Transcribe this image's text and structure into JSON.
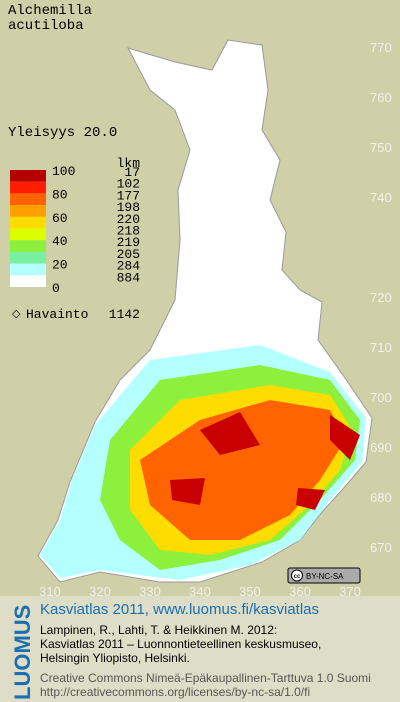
{
  "title": [
    "Alchemilla",
    "acutiloba"
  ],
  "frequency_text": "Yleisyys  20.0",
  "legend": {
    "scale_labels": [
      100,
      80,
      60,
      40,
      20,
      0
    ],
    "count_header": "lkm",
    "classes": [
      {
        "color": "#b40000",
        "count": 17
      },
      {
        "color": "#ff1e00",
        "count": 102
      },
      {
        "color": "#ff6400",
        "count": 177
      },
      {
        "color": "#ffa000",
        "count": 198
      },
      {
        "color": "#ffdc00",
        "count": 220
      },
      {
        "color": "#dcff00",
        "count": 218
      },
      {
        "color": "#8cf03c",
        "count": 219
      },
      {
        "color": "#78f0a0",
        "count": 205
      },
      {
        "color": "#b4ffff",
        "count": 284
      },
      {
        "color": "#ffffff",
        "count": 884
      }
    ],
    "observation_label": "Havainto",
    "observation_count": 1142
  },
  "map": {
    "y_grid": [
      770,
      760,
      750,
      740,
      720,
      710,
      700,
      690,
      680,
      670
    ],
    "x_grid": [
      310,
      320,
      330,
      340,
      350,
      360,
      370
    ],
    "license_badge": "BY-NC-SA"
  },
  "footer": {
    "brand": "LUOMUS",
    "link": "Kasviatlas 2011, www.luomus.fi/kasviatlas",
    "citation": [
      "Lampinen, R., Lahti, T. & Heikkinen M. 2012:",
      "Kasviatlas 2011 – Luonnontieteellinen keskusmuseo,",
      "Helsingin Yliopisto, Helsinki."
    ],
    "license": [
      "Creative Commons Nimeä-Epäkaupallinen-Tarttuva 1.0 Suomi",
      "http://creativecommons.org/licenses/by-nc-sa/1.0/fi"
    ]
  }
}
